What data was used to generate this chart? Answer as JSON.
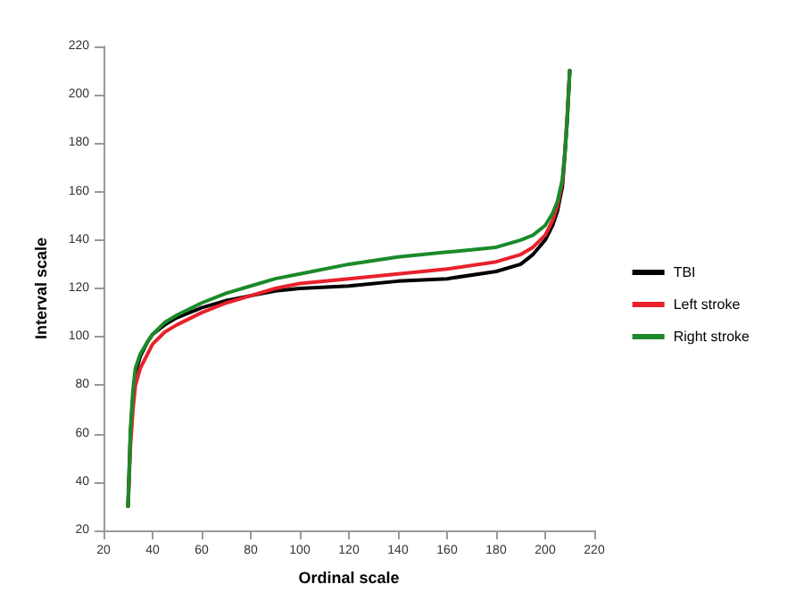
{
  "chart_data": {
    "type": "line",
    "xlabel": "Ordinal scale",
    "ylabel": "Interval scale",
    "x": [
      30,
      31,
      32,
      33,
      35,
      38,
      40,
      45,
      50,
      60,
      70,
      80,
      90,
      100,
      120,
      140,
      160,
      180,
      190,
      195,
      200,
      203,
      205,
      207,
      208,
      209,
      210
    ],
    "series": [
      {
        "name": "TBI",
        "color": "#000000",
        "values": [
          30,
          60,
          75,
          85,
          92,
          98,
          101,
          105,
          108,
          112,
          115,
          117,
          119,
          120,
          121,
          123,
          124,
          127,
          130,
          134,
          140,
          146,
          152,
          162,
          175,
          190,
          210
        ]
      },
      {
        "name": "Left stroke",
        "color": "#e8212b",
        "values": [
          30,
          55,
          70,
          80,
          87,
          93,
          97,
          102,
          105,
          110,
          114,
          117,
          120,
          122,
          124,
          126,
          128,
          131,
          134,
          137,
          142,
          148,
          154,
          164,
          176,
          192,
          210
        ]
      },
      {
        "name": "Right stroke",
        "color": "#1a8a2a",
        "values": [
          30,
          62,
          78,
          87,
          93,
          98,
          101,
          106,
          109,
          114,
          118,
          121,
          124,
          126,
          130,
          133,
          135,
          137,
          140,
          142,
          146,
          151,
          156,
          165,
          176,
          190,
          210
        ]
      }
    ],
    "xlim": [
      20,
      220
    ],
    "xticks": [
      20,
      40,
      60,
      80,
      100,
      120,
      140,
      160,
      180,
      200,
      220
    ],
    "ylim": [
      20,
      220
    ],
    "yticks": [
      20,
      40,
      60,
      80,
      100,
      120,
      140,
      160,
      180,
      200,
      220
    ],
    "grid": false,
    "legend": "right",
    "marker": "none",
    "line_style": "solid"
  }
}
